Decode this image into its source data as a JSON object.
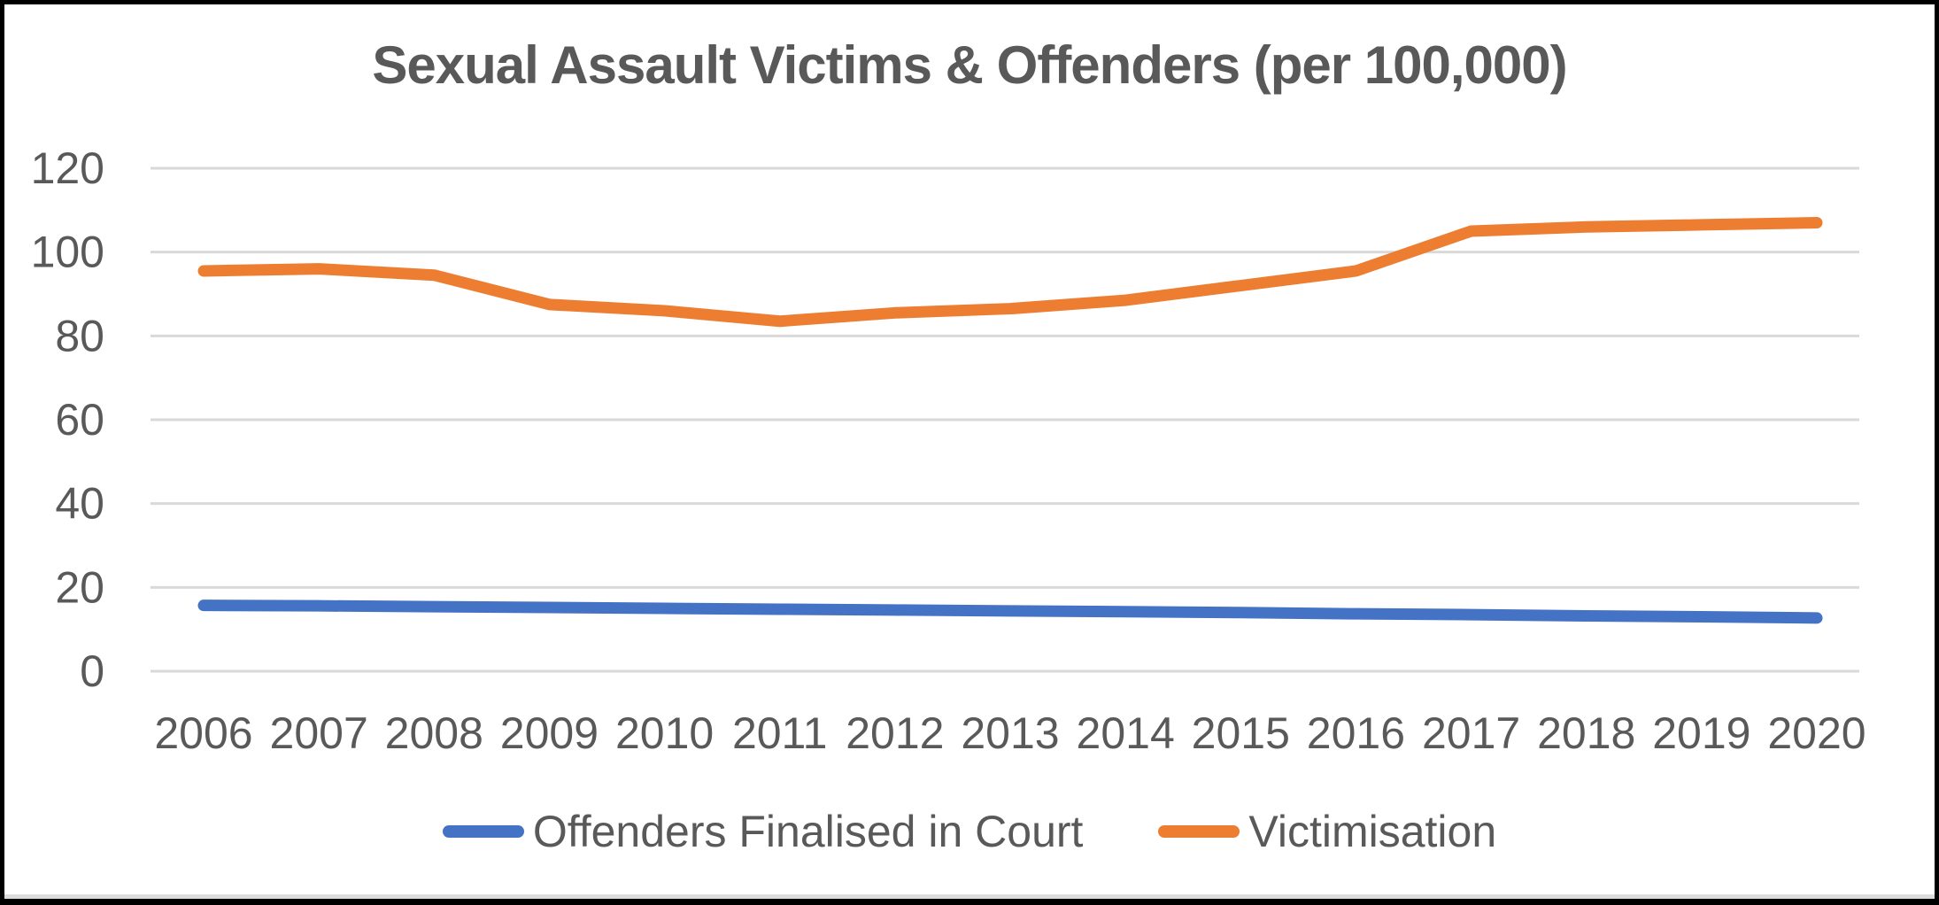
{
  "chart_data": {
    "type": "line",
    "title": "Sexual Assault Victims & Offenders (per 100,000)",
    "categories": [
      "2006",
      "2007",
      "2008",
      "2009",
      "2010",
      "2011",
      "2012",
      "2013",
      "2014",
      "2015",
      "2016",
      "2017",
      "2018",
      "2019",
      "2020"
    ],
    "series": [
      {
        "name": "Offenders Finalised in Court",
        "color": "#4472C4",
        "values": [
          15.7,
          15.6,
          15.4,
          15.2,
          15.0,
          14.8,
          14.6,
          14.4,
          14.2,
          14.0,
          13.7,
          13.5,
          13.2,
          13.0,
          12.7
        ]
      },
      {
        "name": "Victimisation",
        "color": "#ED7D31",
        "values": [
          95.5,
          96,
          94.5,
          87.5,
          86,
          83.5,
          85.5,
          86.5,
          88.5,
          92,
          95.5,
          105,
          106,
          106.5,
          107
        ]
      }
    ],
    "xlabel": "",
    "ylabel": "",
    "ylim": [
      0,
      120
    ],
    "y_ticks": [
      0,
      20,
      40,
      60,
      80,
      100,
      120
    ],
    "grid": "horizontal",
    "legend_position": "bottom",
    "text_color": "#595959",
    "gridline_color": "#D9D9D9",
    "background_color": "#FFFFFF",
    "frame_color": "#000000"
  }
}
